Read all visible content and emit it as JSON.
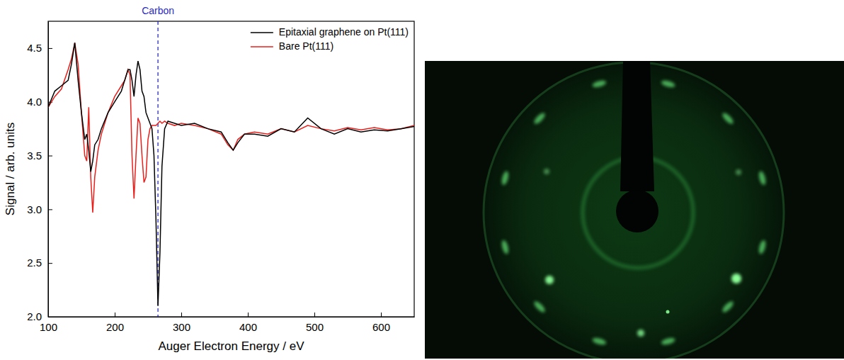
{
  "chart_data": {
    "type": "line",
    "x_label": "Auger Electron Energy / eV",
    "y_label": "Signal / arb. units",
    "x": [
      100,
      110,
      120,
      130,
      135,
      140,
      145,
      150,
      155,
      158,
      161,
      164,
      167,
      170,
      175,
      180,
      190,
      200,
      210,
      215,
      220,
      223,
      226,
      229,
      232,
      235,
      238,
      241,
      244,
      247,
      250,
      253,
      256,
      259,
      262,
      265,
      268,
      271,
      275,
      280,
      290,
      300,
      320,
      340,
      360,
      370,
      378,
      385,
      395,
      410,
      430,
      450,
      470,
      490,
      510,
      530,
      550,
      570,
      590,
      610,
      630,
      650
    ],
    "series": [
      {
        "name": "Epitaxial graphene on Pt(111)",
        "color": "#000000",
        "line_style": "solid",
        "values": [
          3.95,
          4.1,
          4.15,
          4.2,
          4.35,
          4.55,
          4.2,
          3.9,
          3.65,
          3.7,
          3.55,
          3.35,
          3.45,
          3.6,
          3.65,
          3.75,
          3.9,
          4.0,
          4.1,
          4.2,
          4.3,
          4.3,
          4.2,
          4.05,
          4.25,
          4.38,
          4.3,
          4.1,
          4.05,
          3.9,
          3.85,
          3.8,
          3.75,
          3.5,
          2.9,
          2.1,
          2.6,
          3.4,
          3.75,
          3.82,
          3.8,
          3.78,
          3.8,
          3.75,
          3.72,
          3.62,
          3.55,
          3.62,
          3.7,
          3.7,
          3.68,
          3.75,
          3.72,
          3.85,
          3.75,
          3.7,
          3.75,
          3.72,
          3.74,
          3.73,
          3.75,
          3.77
        ]
      },
      {
        "name": "Bare Pt(111)",
        "color": "#e8201c",
        "line_style": "solid",
        "values": [
          3.95,
          4.05,
          4.12,
          4.3,
          4.4,
          4.55,
          4.35,
          3.9,
          3.5,
          3.45,
          3.95,
          3.3,
          2.97,
          3.3,
          3.55,
          3.7,
          3.9,
          4.05,
          4.15,
          4.2,
          4.3,
          4.25,
          3.5,
          3.1,
          3.5,
          3.85,
          3.8,
          3.5,
          3.25,
          3.3,
          3.65,
          3.75,
          3.78,
          3.78,
          3.78,
          3.8,
          3.82,
          3.8,
          3.82,
          3.8,
          3.78,
          3.8,
          3.78,
          3.75,
          3.7,
          3.6,
          3.55,
          3.65,
          3.7,
          3.72,
          3.7,
          3.75,
          3.72,
          3.78,
          3.75,
          3.73,
          3.76,
          3.74,
          3.76,
          3.74,
          3.75,
          3.78
        ]
      }
    ],
    "xlim": [
      100,
      650
    ],
    "xticks": [
      100,
      200,
      300,
      400,
      500,
      600
    ],
    "ylim": [
      2.0,
      4.75
    ],
    "yticks": [
      {
        "value": 2,
        "label": "2.0"
      },
      2.5,
      {
        "value": 3,
        "label": "3.0"
      },
      3.5,
      {
        "value": 4,
        "label": "4.0"
      },
      4.5
    ],
    "legend": "upper right",
    "annotations": [
      {
        "text": "Carbon",
        "x": 265,
        "color": "#2b2bbf",
        "line_style": "dashed"
      }
    ]
  }
}
